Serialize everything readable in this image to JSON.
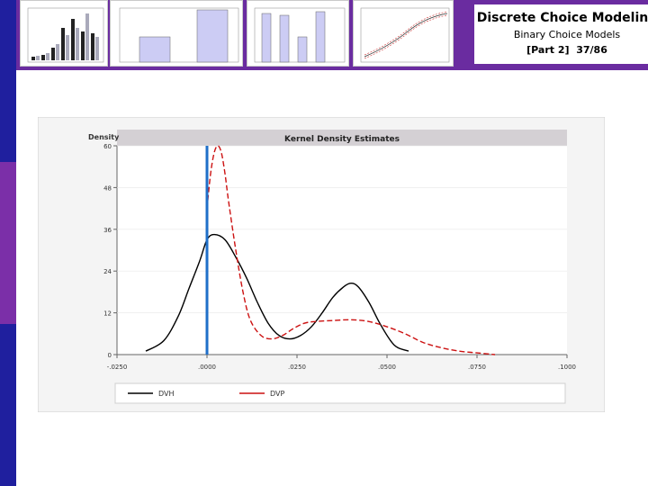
{
  "header": {
    "title": "Discrete Choice Modeling",
    "subtitle": "Binary Choice Models",
    "part": "[Part 2]",
    "slide": "37/86"
  },
  "colors": {
    "accent": "#6a2ca0",
    "sidebar_blue": "#1f1f9e",
    "series_black": "#000000",
    "series_red": "#cc1111",
    "vline": "#1f6fc9",
    "chart_title_bg": "#d4d0d4"
  },
  "chart_data": {
    "type": "line",
    "title": "Kernel Density Estimates",
    "ylabel": "Density",
    "xlabel": "",
    "xlim": [
      -0.025,
      0.1
    ],
    "ylim": [
      0,
      60
    ],
    "xticks": [
      -0.025,
      0,
      0.025,
      0.05,
      0.075,
      0.1
    ],
    "xtick_labels": [
      "-.0250",
      ".0000",
      ".0250",
      ".0500",
      ".0750",
      ".1000"
    ],
    "yticks": [
      0,
      12,
      24,
      36,
      48,
      60
    ],
    "ytick_labels": [
      "0",
      "12",
      "24",
      "36",
      "48",
      "60"
    ],
    "vertical_line_x": 0,
    "legend_position": "bottom",
    "series": [
      {
        "name": "DVH",
        "style": "solid",
        "color": "#000000",
        "x": [
          -0.017,
          -0.012,
          -0.008,
          -0.005,
          -0.002,
          0,
          0.002,
          0.005,
          0.008,
          0.011,
          0.014,
          0.017,
          0.02,
          0.023,
          0.026,
          0.029,
          0.032,
          0.035,
          0.038,
          0.04,
          0.042,
          0.045,
          0.048,
          0.051,
          0.053,
          0.056
        ],
        "y": [
          1,
          4,
          11,
          19,
          27,
          33,
          34.5,
          33,
          28,
          22,
          15,
          9,
          5.5,
          4.5,
          5.5,
          8,
          12,
          16.5,
          19.5,
          20.5,
          19.5,
          15,
          9,
          4,
          2,
          1
        ]
      },
      {
        "name": "DVP",
        "style": "dashed",
        "color": "#cc1111",
        "x": [
          0,
          0.001,
          0.002,
          0.003,
          0.004,
          0.005,
          0.006,
          0.008,
          0.01,
          0.012,
          0.015,
          0.018,
          0.021,
          0.024,
          0.027,
          0.03,
          0.035,
          0.04,
          0.045,
          0.05,
          0.055,
          0.06,
          0.065,
          0.07,
          0.075,
          0.08
        ],
        "y": [
          42,
          52,
          58,
          60,
          58,
          52,
          44,
          30,
          18,
          10,
          5.5,
          4.5,
          5.5,
          7.5,
          9,
          9.5,
          9.8,
          10,
          9.5,
          8,
          6,
          3.5,
          2,
          1,
          0.5,
          0
        ]
      }
    ]
  }
}
